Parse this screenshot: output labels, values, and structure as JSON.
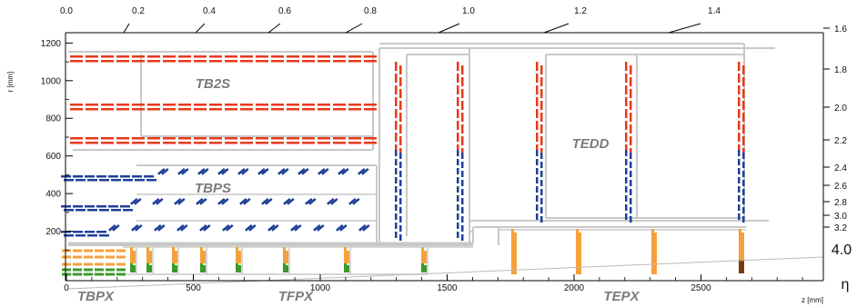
{
  "axes": {
    "z_label": "z [mm]",
    "r_label": "r [mm]",
    "eta_symbol": "η",
    "eta_edge_label": "4.0",
    "z_ticks": [
      "0",
      "500",
      "1000",
      "1500",
      "2000",
      "2500"
    ],
    "r_ticks": [
      "200",
      "400",
      "600",
      "800",
      "1000",
      "1200"
    ],
    "eta_top_ticks": [
      "0.0",
      "0.2",
      "0.4",
      "0.6",
      "0.8",
      "1.0",
      "1.2",
      "1.4"
    ],
    "eta_right_ticks": [
      "1.6",
      "1.8",
      "2.0",
      "2.2",
      "2.4",
      "2.6",
      "2.8",
      "3.0",
      "3.2"
    ]
  },
  "regions": {
    "tb2s": "TB2S",
    "tbps": "TBPS",
    "tedd": "TEDD",
    "tbpx": "TBPX",
    "tfpx": "TFPX",
    "tepx": "TEPX"
  },
  "colors": {
    "tb2s": "#e8391b",
    "tbps": "#1f3f98",
    "tbpx_orange": "#f5a13b",
    "tbpx_green": "#3a9a2a",
    "tepx_dark": "#7a3a10",
    "support": "#c8c8c8",
    "axis": "#000000"
  }
}
